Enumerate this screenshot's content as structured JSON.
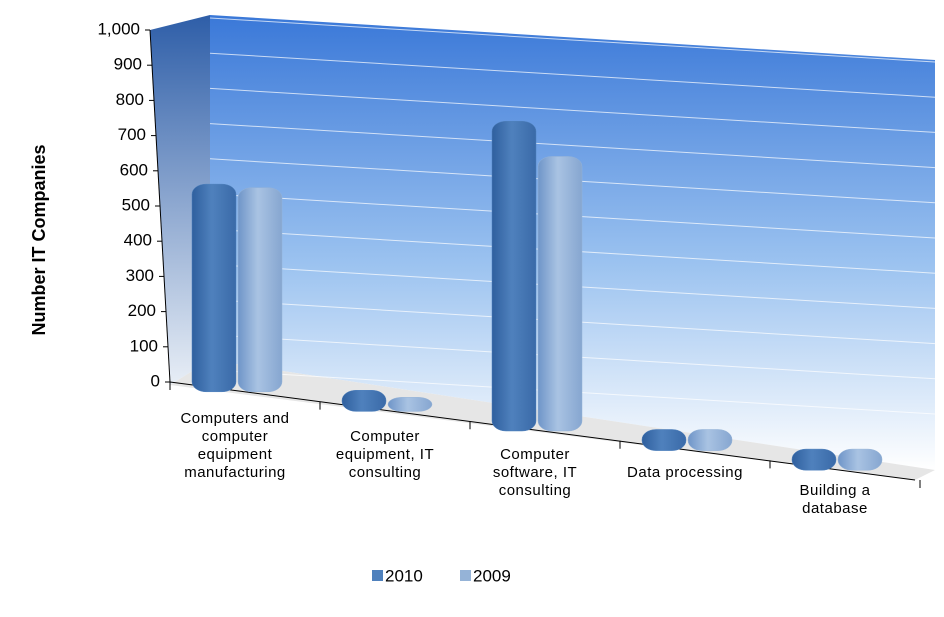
{
  "chart_data": {
    "type": "bar",
    "y_label": "Number IT Companies",
    "categories": [
      "Computers and computer equipment manufacturing",
      "Computer equipment, IT consulting",
      "Computer software, IT consulting",
      "Data processing",
      "Building a database"
    ],
    "series": [
      {
        "name": "2010",
        "color": "#4f81bd",
        "values": [
          590,
          60,
          880,
          60,
          60
        ]
      },
      {
        "name": "2009",
        "color": "#95b3d7",
        "values": [
          580,
          40,
          780,
          60,
          60
        ]
      }
    ],
    "ylim": [
      0,
      1000
    ],
    "yticks": [
      0,
      100,
      200,
      300,
      400,
      500,
      600,
      700,
      800,
      900,
      {
        "value": 1000,
        "label": "1,000"
      }
    ],
    "grid": true,
    "legend": "bottom"
  }
}
